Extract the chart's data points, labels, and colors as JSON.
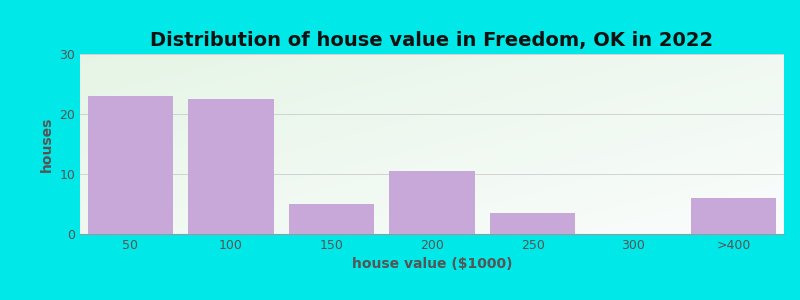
{
  "title": "Distribution of house value in Freedom, OK in 2022",
  "xlabel": "house value ($1000)",
  "ylabel": "houses",
  "categories": [
    "50",
    "100",
    "150",
    "200",
    "250",
    "300",
    ">400"
  ],
  "values": [
    23,
    22.5,
    5,
    10.5,
    3.5,
    0,
    6
  ],
  "bar_color": "#c8a8d8",
  "bar_edgecolor": "#c8a8d8",
  "background_color": "#00e8e8",
  "plot_bg_topleft": [
    0.9,
    0.96,
    0.9
  ],
  "plot_bg_bottomright": [
    0.98,
    0.99,
    0.99
  ],
  "ylim": [
    0,
    30
  ],
  "yticks": [
    0,
    10,
    20,
    30
  ],
  "grid_color": "#cccccc",
  "title_fontsize": 14,
  "label_fontsize": 10,
  "tick_fontsize": 9,
  "tick_color": "#555555",
  "label_color": "#555555",
  "title_color": "#111111"
}
